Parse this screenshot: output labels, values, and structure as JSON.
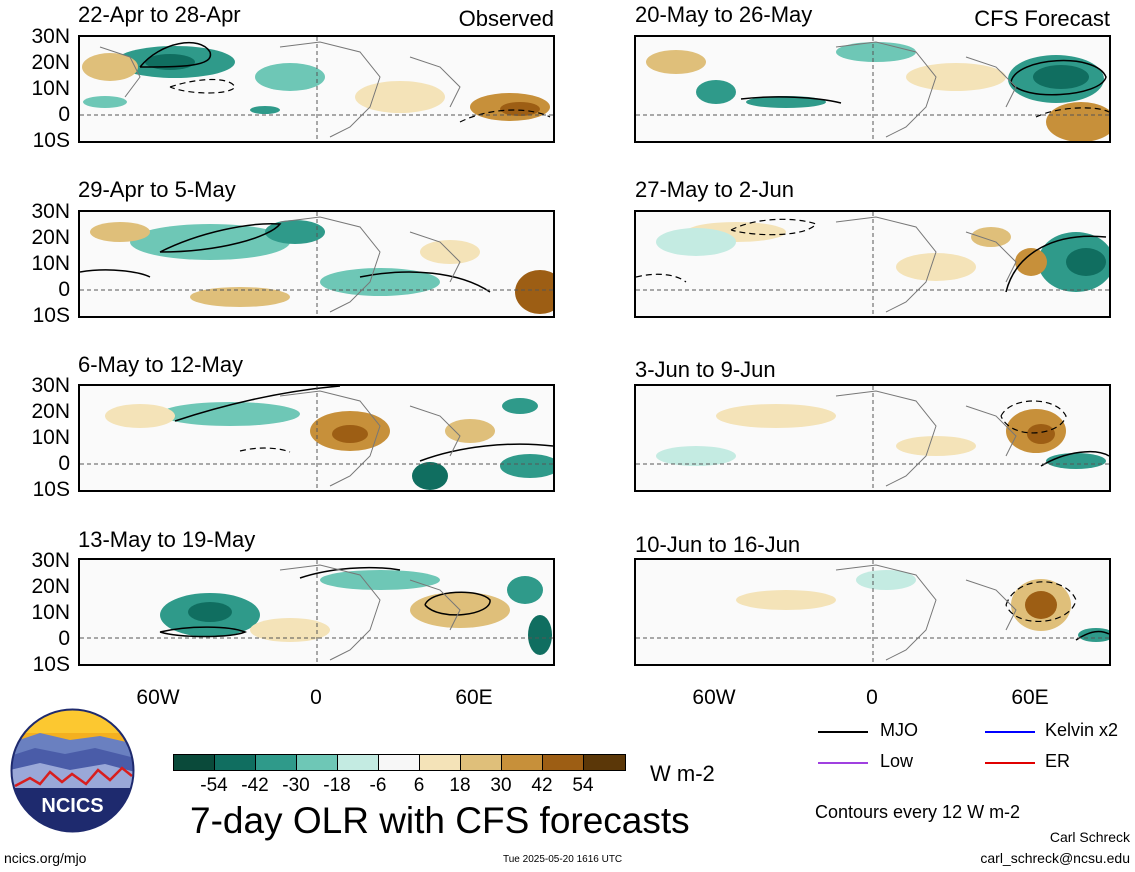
{
  "panels_left": [
    {
      "title": "22-Apr to 28-Apr",
      "tag": "Observed"
    },
    {
      "title": "29-Apr to 5-May",
      "tag": ""
    },
    {
      "title": "6-May to 12-May",
      "tag": ""
    },
    {
      "title": "13-May to 19-May",
      "tag": ""
    }
  ],
  "panels_right": [
    {
      "title": "20-May to 26-May",
      "tag": "CFS Forecast"
    },
    {
      "title": "27-May to 2-Jun",
      "tag": ""
    },
    {
      "title": "3-Jun to 9-Jun",
      "tag": ""
    },
    {
      "title": "10-Jun to 16-Jun",
      "tag": ""
    }
  ],
  "lat_labels": [
    "30N",
    "20N",
    "10N",
    "0",
    "10S"
  ],
  "lon_labels": [
    "60W",
    "0",
    "60E"
  ],
  "colorbar": {
    "labels": [
      "-54",
      "-42",
      "-30",
      "-18",
      "-6",
      "6",
      "18",
      "30",
      "42",
      "54"
    ],
    "colors": [
      "#0a4a3a",
      "#106e60",
      "#2f9a8a",
      "#6ec7b6",
      "#c4ebe2",
      "#f7f7f7",
      "#f4e3b8",
      "#dfbf7a",
      "#c7903a",
      "#9d5e14",
      "#5b3708"
    ],
    "units": "W m-2"
  },
  "main_title": "7-day OLR with CFS forecasts",
  "logo_text": "NCICS",
  "legend": {
    "items": [
      {
        "label": "MJO",
        "color": "#000000"
      },
      {
        "label": "Kelvin x2",
        "color": "#0000ff"
      },
      {
        "label": "Low",
        "color": "#a040e0"
      },
      {
        "label": "ER",
        "color": "#e00000"
      }
    ],
    "note": "Contours every 12 W m-2"
  },
  "footer": {
    "left": "ncics.org/mjo",
    "center": "Tue 2025-05-20 1616 UTC",
    "author": "Carl Schreck",
    "email": "carl_schreck@ncsu.edu"
  }
}
